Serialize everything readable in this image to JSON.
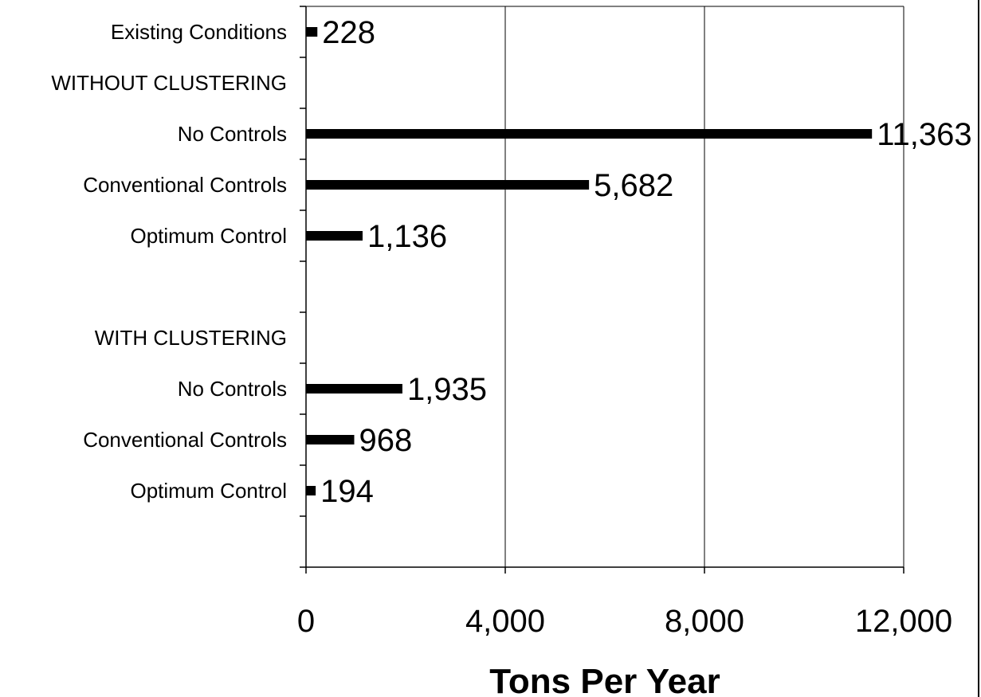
{
  "chart_data": {
    "type": "bar",
    "orientation": "horizontal",
    "categories": [
      "Existing Conditions",
      "WITHOUT CLUSTERING",
      "No Controls",
      "Conventional Controls",
      "Optimum Control",
      "",
      "WITH CLUSTERING",
      "No Controls",
      "Conventional Controls",
      "Optimum Control",
      ""
    ],
    "values": [
      228,
      null,
      11363,
      5682,
      1136,
      null,
      null,
      1935,
      968,
      194,
      null
    ],
    "value_labels": [
      "228",
      "",
      "11,363",
      "5,682",
      "1,136",
      "",
      "",
      "1,935",
      "968",
      "194",
      ""
    ],
    "xlabel": "Tons Per Year",
    "xlim": [
      0,
      12000
    ],
    "xticks": [
      0,
      4000,
      8000,
      12000
    ],
    "xtick_labels": [
      "0",
      "4,000",
      "8,000",
      "12,000"
    ],
    "grid": true,
    "bar_color": "#000000"
  }
}
